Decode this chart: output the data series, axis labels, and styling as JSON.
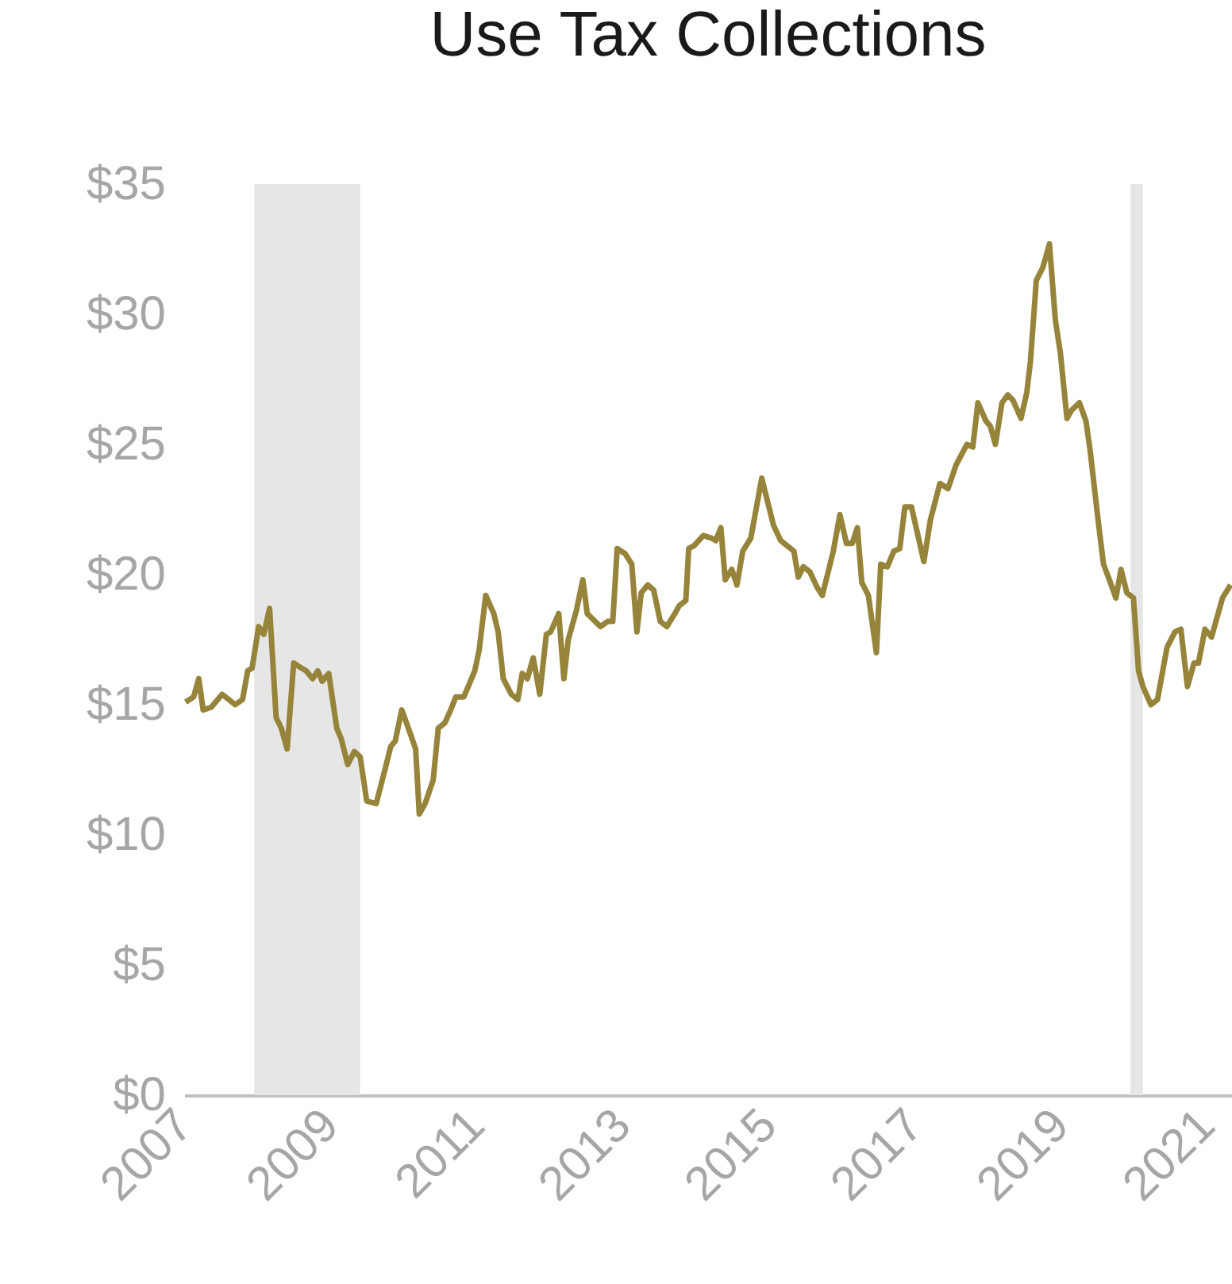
{
  "chart_data": {
    "type": "line",
    "title": "Use Tax Collections",
    "x": [
      2007.02,
      2007.13,
      2007.2,
      2007.26,
      2007.37,
      2007.52,
      2007.7,
      2007.8,
      2007.87,
      2007.93,
      2008.02,
      2008.09,
      2008.17,
      2008.26,
      2008.33,
      2008.41,
      2008.5,
      2008.61,
      2008.67,
      2008.76,
      2008.83,
      2008.89,
      2008.98,
      2009.09,
      2009.15,
      2009.24,
      2009.33,
      2009.41,
      2009.5,
      2009.63,
      2009.74,
      2009.83,
      2009.89,
      2009.98,
      2010.07,
      2010.17,
      2010.22,
      2010.3,
      2010.41,
      2010.48,
      2010.57,
      2010.65,
      2010.72,
      2010.83,
      2010.89,
      2010.98,
      2011.04,
      2011.13,
      2011.24,
      2011.3,
      2011.37,
      2011.48,
      2011.57,
      2011.63,
      2011.7,
      2011.78,
      2011.87,
      2011.96,
      2012.02,
      2012.13,
      2012.2,
      2012.26,
      2012.37,
      2012.46,
      2012.52,
      2012.7,
      2012.8,
      2012.87,
      2012.93,
      2013.04,
      2013.13,
      2013.2,
      2013.26,
      2013.35,
      2013.43,
      2013.52,
      2013.61,
      2013.72,
      2013.78,
      2013.87,
      2013.91,
      2013.98,
      2014.11,
      2014.22,
      2014.28,
      2014.35,
      2014.41,
      2014.5,
      2014.57,
      2014.65,
      2014.76,
      2014.91,
      2015.07,
      2015.17,
      2015.35,
      2015.41,
      2015.48,
      2015.57,
      2015.67,
      2015.74,
      2015.89,
      2015.98,
      2016.07,
      2016.15,
      2016.22,
      2016.28,
      2016.37,
      2016.48,
      2016.54,
      2016.63,
      2016.72,
      2016.8,
      2016.87,
      2016.96,
      2017.13,
      2017.22,
      2017.35,
      2017.46,
      2017.57,
      2017.72,
      2017.8,
      2017.87,
      2017.98,
      2018.04,
      2018.11,
      2018.2,
      2018.28,
      2018.35,
      2018.46,
      2018.54,
      2018.59,
      2018.67,
      2018.76,
      2018.85,
      2018.93,
      2019.0,
      2019.09,
      2019.15,
      2019.26,
      2019.35,
      2019.41,
      2019.52,
      2019.59,
      2019.67,
      2019.76,
      2019.83,
      2019.91,
      2020.0,
      2020.07,
      2020.13,
      2020.24,
      2020.33,
      2020.46,
      2020.57,
      2020.65,
      2020.74,
      2020.83,
      2020.89,
      2020.98,
      2021.07,
      2021.22,
      2021.33
    ],
    "series": [
      {
        "color": "#958439",
        "values": [
          15.1,
          15.3,
          16.0,
          14.8,
          14.9,
          15.4,
          15.0,
          15.2,
          16.3,
          16.4,
          18.0,
          17.7,
          18.7,
          14.5,
          14.1,
          13.3,
          16.6,
          16.4,
          16.3,
          16.0,
          16.3,
          15.9,
          16.2,
          14.1,
          13.7,
          12.7,
          13.2,
          13.0,
          11.3,
          11.2,
          12.4,
          13.4,
          13.6,
          14.8,
          14.1,
          13.3,
          10.8,
          11.2,
          12.1,
          14.1,
          14.3,
          14.8,
          15.3,
          15.3,
          15.7,
          16.3,
          17.1,
          19.2,
          18.5,
          17.8,
          16.0,
          15.4,
          15.2,
          16.2,
          16.0,
          16.8,
          15.4,
          17.7,
          17.8,
          18.5,
          16.0,
          17.5,
          18.6,
          19.8,
          18.5,
          18.0,
          18.2,
          18.2,
          21.0,
          20.8,
          20.4,
          17.8,
          19.3,
          19.6,
          19.4,
          18.2,
          18.0,
          18.5,
          18.8,
          19.0,
          21.0,
          21.1,
          21.5,
          21.4,
          21.3,
          21.8,
          19.8,
          20.2,
          19.6,
          20.9,
          21.4,
          23.7,
          21.9,
          21.3,
          20.9,
          19.9,
          20.3,
          20.1,
          19.5,
          19.2,
          20.9,
          22.3,
          21.2,
          21.2,
          21.8,
          19.7,
          19.2,
          17.0,
          20.4,
          20.3,
          20.9,
          21.0,
          22.6,
          22.6,
          20.5,
          22.1,
          23.5,
          23.3,
          24.2,
          25.0,
          24.9,
          26.6,
          25.9,
          25.7,
          25.0,
          26.6,
          26.9,
          26.7,
          26.0,
          27.0,
          28.2,
          31.3,
          31.8,
          32.7,
          29.8,
          28.5,
          26.0,
          26.3,
          26.6,
          25.9,
          24.7,
          22.0,
          20.4,
          19.8,
          19.1,
          20.2,
          19.3,
          19.1,
          16.3,
          15.7,
          15.0,
          15.2,
          17.2,
          17.8,
          17.9,
          15.7,
          16.6,
          16.6,
          17.9,
          17.6,
          19.1,
          19.6
        ]
      }
    ],
    "xlim": [
      2007,
      2021.35
    ],
    "xticks": [
      2007,
      2009,
      2011,
      2013,
      2015,
      2017,
      2019,
      2021
    ],
    "ylim": [
      0,
      35
    ],
    "yticks": [
      {
        "value": 0,
        "label": "$0"
      },
      {
        "value": 5,
        "label": "$5"
      },
      {
        "value": 10,
        "label": "$10"
      },
      {
        "value": 15,
        "label": "$15"
      },
      {
        "value": 20,
        "label": "$20"
      },
      {
        "value": 25,
        "label": "$25"
      },
      {
        "value": 30,
        "label": "$30"
      },
      {
        "value": 35,
        "label": "$35"
      }
    ],
    "bands": [
      {
        "axis": "x",
        "from": 2007.96,
        "to": 2009.41,
        "color": "#e7e6e6"
      },
      {
        "axis": "x",
        "from": 2019.96,
        "to": 2020.13,
        "color": "#e7e6e6"
      }
    ],
    "grid": false,
    "marker": "none",
    "line_style": "solid"
  }
}
